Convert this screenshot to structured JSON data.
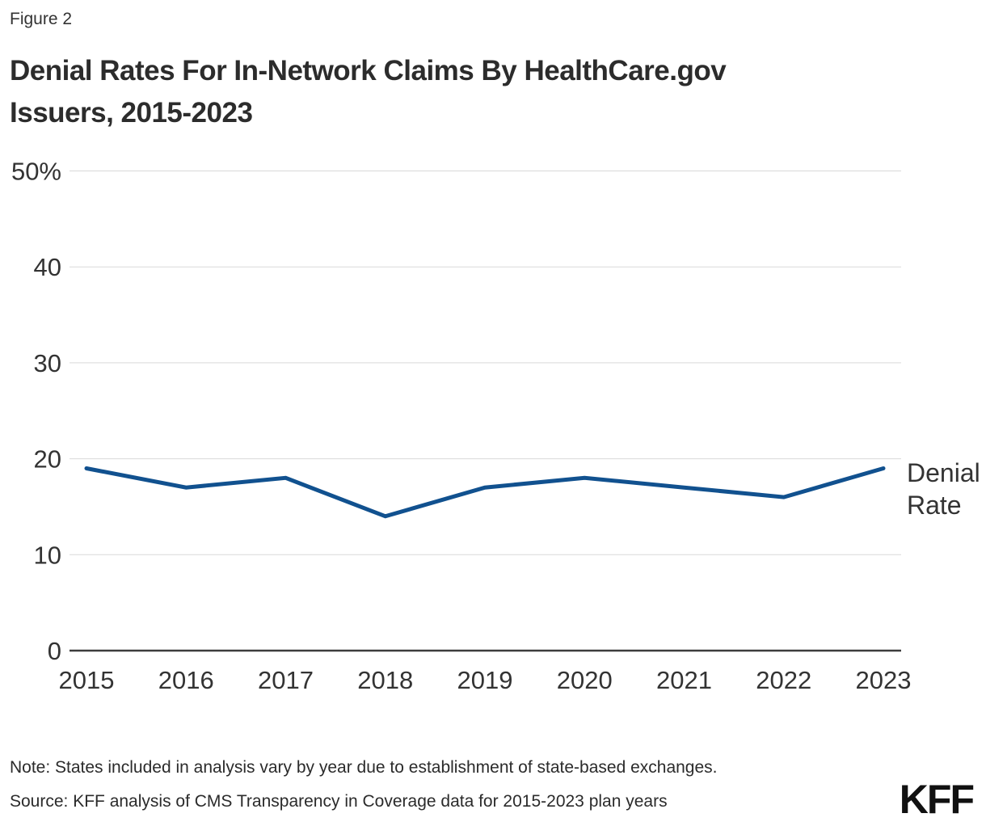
{
  "page": {
    "figure_label": "Figure 2",
    "title_line1": "Denial Rates For In-Network Claims By HealthCare.gov",
    "title_line2": "Issuers, 2015-2023",
    "note": "Note: States included in analysis vary by year due to establishment of state-based exchanges.",
    "source": "Source: KFF analysis of CMS Transparency in Coverage data for 2015-2023 plan years",
    "logo_text": "KFF"
  },
  "chart_data": {
    "type": "line",
    "title": "Denial Rates For In-Network Claims By HealthCare.gov Issuers, 2015-2023",
    "figure_label": "Figure 2",
    "categories": [
      "2015",
      "2016",
      "2017",
      "2018",
      "2019",
      "2020",
      "2021",
      "2022",
      "2023"
    ],
    "series": [
      {
        "name": "Denial Rate",
        "label_lines": [
          "Denial",
          "Rate"
        ],
        "values": [
          19,
          17,
          18,
          14,
          17,
          18,
          17,
          16,
          19
        ]
      }
    ],
    "xlabel": "",
    "ylabel": "",
    "unit": "%",
    "ylim": [
      0,
      50
    ],
    "yticks": [
      0,
      10,
      20,
      30,
      40,
      50
    ],
    "ytick_labels": [
      "0",
      "10",
      "20",
      "30",
      "40",
      "50%"
    ],
    "grid": "horizontal",
    "legend_position": "right-of-line-end",
    "colors": {
      "line": "#11518f",
      "grid": "#d9d9d9",
      "axis": "#3c3c3c",
      "tick_text": "#333333",
      "series_label_text": "#333333"
    }
  }
}
